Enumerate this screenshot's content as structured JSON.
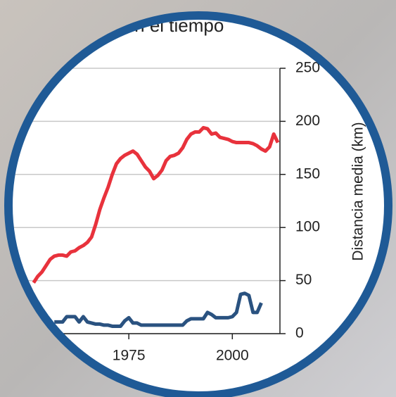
{
  "chart_data": {
    "type": "line",
    "title": "a en el tiempo",
    "y_label": "Distancia media (km)",
    "x": [
      1952,
      1953,
      1954,
      1955,
      1956,
      1957,
      1958,
      1959,
      1960,
      1961,
      1962,
      1963,
      1964,
      1965,
      1966,
      1967,
      1968,
      1969,
      1970,
      1971,
      1972,
      1973,
      1974,
      1975,
      1976,
      1977,
      1978,
      1979,
      1980,
      1981,
      1982,
      1983,
      1984,
      1985,
      1986,
      1987,
      1988,
      1989,
      1990,
      1991,
      1992,
      1993,
      1994,
      1995,
      1996,
      1997,
      1998,
      1999,
      2000,
      2001,
      2002,
      2003,
      2004,
      2005,
      2006,
      2007,
      2008,
      2009,
      2010,
      2011
    ],
    "series": [
      {
        "color": "#e8323c",
        "values": [
          48,
          54,
          58,
          64,
          70,
          73,
          74,
          74,
          73,
          77,
          78,
          81,
          83,
          86,
          91,
          103,
          117,
          128,
          138,
          150,
          160,
          165,
          168,
          170,
          172,
          169,
          163,
          157,
          153,
          146,
          149,
          154,
          163,
          167,
          168,
          170,
          175,
          183,
          188,
          190,
          190,
          194,
          193,
          188,
          189,
          185,
          184,
          183,
          181,
          180,
          180,
          180,
          180,
          179,
          177,
          174,
          172,
          176,
          188,
          180
        ]
      },
      {
        "color": "#2a5280",
        "values": [
          null,
          null,
          null,
          null,
          null,
          11,
          11,
          11,
          16,
          16,
          16,
          11,
          16,
          11,
          10,
          9,
          9,
          8,
          8,
          7,
          7,
          7,
          12,
          15,
          10,
          10,
          8,
          8,
          8,
          8,
          8,
          8,
          8,
          8,
          8,
          8,
          8,
          12,
          14,
          14,
          14,
          14,
          20,
          18,
          15,
          15,
          15,
          15,
          16,
          20,
          37,
          38,
          36,
          20,
          20,
          29,
          null,
          null,
          null,
          null
        ]
      }
    ],
    "xlim": [
      1950,
      2011.5
    ],
    "xticks": [
      1975,
      2000
    ],
    "ylim": [
      0,
      250
    ],
    "yticks": [
      0,
      50,
      100,
      150,
      200,
      250
    ],
    "grid": true
  }
}
